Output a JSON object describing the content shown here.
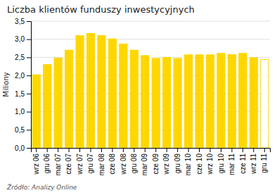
{
  "chart_data": {
    "type": "bar",
    "title": "Liczba klientów funduszy inwestycyjnych",
    "ylabel": "Miliony",
    "source": "Źródło: Analizy Online",
    "categories": [
      "wrz 06",
      "gru 06",
      "mar 07",
      "cze 07",
      "wrz 07",
      "gru 07",
      "mar 08",
      "cze 08",
      "wrz 08",
      "gru 08",
      "mar 09",
      "cze 09",
      "wrz 09",
      "gru 09",
      "mar 10",
      "cze 10",
      "wrz 10",
      "gru 10",
      "mar 11",
      "cze 11",
      "wrz 11",
      "gru 11"
    ],
    "values": [
      2.02,
      2.3,
      2.48,
      2.7,
      3.1,
      3.16,
      3.1,
      3.01,
      2.87,
      2.7,
      2.55,
      2.47,
      2.5,
      2.47,
      2.57,
      2.57,
      2.57,
      2.61,
      2.58,
      2.61,
      2.49,
      2.44
    ],
    "color": "#FFD700",
    "colors": [
      "#FFD700",
      "#FFD700",
      "#FFD700",
      "#FFD700",
      "#FFD700",
      "#FFD700",
      "#FFD700",
      "#FFD700",
      "#FFD700",
      "#FFD700",
      "#FFD700",
      "#FFD700",
      "#FFD700",
      "#FFD700",
      "#FFD700",
      "#FFD700",
      "#FFD700",
      "#FFD700",
      "#FFD700",
      "#FFD700",
      "#FFD700",
      "#FFFFFF"
    ],
    "ylim": [
      0,
      3.5
    ],
    "yticks": [
      {
        "value": 0.0,
        "label": "0,0"
      },
      {
        "value": 0.5,
        "label": "0,5"
      },
      {
        "value": 1.0,
        "label": "1,0"
      },
      {
        "value": 1.5,
        "label": "1,5"
      },
      {
        "value": 2.0,
        "label": "2,0"
      },
      {
        "value": 2.5,
        "label": "2,5"
      },
      {
        "value": 3.0,
        "label": "3,0"
      },
      {
        "value": 3.5,
        "label": "3,5"
      }
    ],
    "grid": true
  }
}
